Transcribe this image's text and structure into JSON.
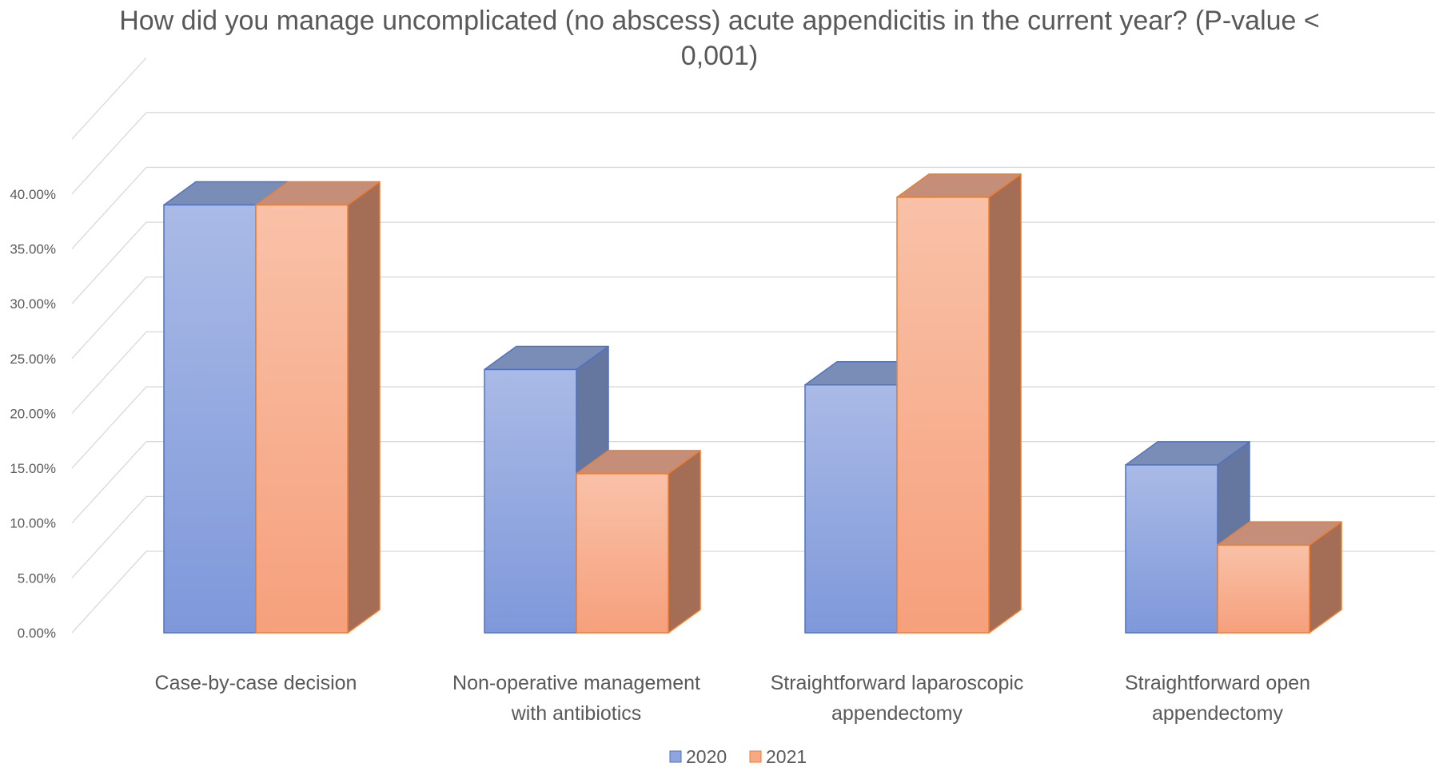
{
  "chart_data": {
    "type": "bar",
    "title": "How did you manage uncomplicated (no abscess) acute appendicitis in the current year? (P-value < 0,001)",
    "xlabel": "",
    "ylabel": "",
    "categories": [
      [
        "Case-by-case decision"
      ],
      [
        "Non-operative management",
        "with antibiotics"
      ],
      [
        "Straightforward laparoscopic",
        "appendectomy"
      ],
      [
        "Straightforward open",
        "appendectomy"
      ]
    ],
    "series": [
      {
        "name": "2020",
        "values": [
          0.39,
          0.24,
          0.226,
          0.153
        ],
        "color": "#8EA5DE"
      },
      {
        "name": "2021",
        "values": [
          0.39,
          0.145,
          0.397,
          0.08
        ],
        "color": "#F7A985"
      }
    ],
    "y_ticks": [
      "0.00%",
      "5.00%",
      "10.00%",
      "15.00%",
      "20.00%",
      "25.00%",
      "30.00%",
      "35.00%",
      "40.00%"
    ],
    "ylim": [
      0,
      0.45
    ],
    "grid": true,
    "legend_position": "bottom",
    "style": "3d-clustered-column"
  }
}
